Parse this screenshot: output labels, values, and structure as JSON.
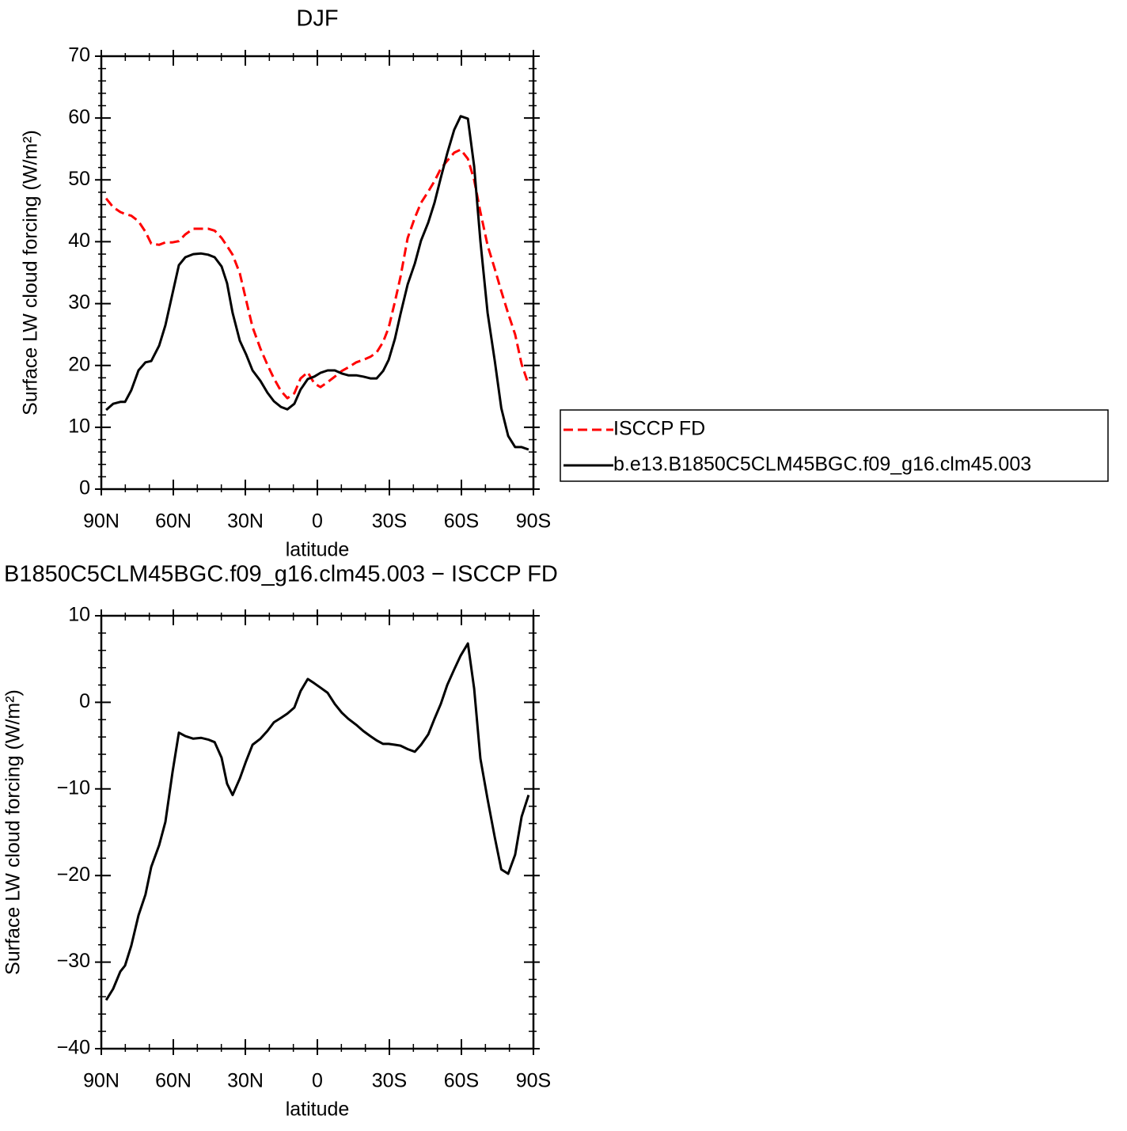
{
  "chart_data": [
    {
      "type": "line",
      "title": "DJF",
      "x_label": "latitude",
      "y_label": "Surface LW cloud forcing (W/m²)",
      "x": [
        88.0,
        85.1,
        82.1,
        80.1,
        77.5,
        74.5,
        71.6,
        69.2,
        65.9,
        63.3,
        60.3,
        57.7,
        55.0,
        51.7,
        48.4,
        45.5,
        42.8,
        39.9,
        37.6,
        35.3,
        32.3,
        29.7,
        27.0,
        23.7,
        20.8,
        18.1,
        15.2,
        12.5,
        9.6,
        7.0,
        4.0,
        1.3,
        -1.3,
        -4.3,
        -7.3,
        -10.2,
        -12.9,
        -16.2,
        -19.1,
        -22.1,
        -24.7,
        -27.4,
        -29.7,
        -32.3,
        -34.6,
        -37.6,
        -40.6,
        -43.2,
        -46.2,
        -48.8,
        -51.4,
        -54.1,
        -57.0,
        -59.7,
        -62.7,
        -65.3,
        -67.9,
        -70.9,
        -73.9,
        -76.6,
        -79.5,
        -82.4,
        -85.1,
        -88.0
      ],
      "series": [
        {
          "name": "ISCCP FD",
          "color": "#ff0000",
          "dash": "dashed",
          "values": [
            47.0,
            45.6,
            44.8,
            44.5,
            44.2,
            43.3,
            41.6,
            39.7,
            39.5,
            39.9,
            39.9,
            40.1,
            41.2,
            42.1,
            42.1,
            42.1,
            41.8,
            40.6,
            39.3,
            37.9,
            34.9,
            30.6,
            26.2,
            22.7,
            20.1,
            17.9,
            15.9,
            14.7,
            15.5,
            17.9,
            18.9,
            17.1,
            16.5,
            17.3,
            18.2,
            19.1,
            19.7,
            20.5,
            20.9,
            21.4,
            22.1,
            23.8,
            26.1,
            30.3,
            34.3,
            40.6,
            43.9,
            46.3,
            48.1,
            49.8,
            51.8,
            53.1,
            54.4,
            54.9,
            53.4,
            50.0,
            44.8,
            39.4,
            35.6,
            32.0,
            28.4,
            25.0,
            20.2,
            16.9
          ]
        },
        {
          "name": "b.e13.B1850C5CLM45BGC.f09_g16.clm45.003",
          "color": "#000000",
          "dash": "solid",
          "values": [
            12.8,
            13.8,
            14.1,
            14.1,
            16.0,
            19.2,
            20.5,
            20.7,
            23.2,
            26.5,
            31.7,
            36.2,
            37.5,
            38.0,
            38.1,
            37.9,
            37.5,
            36.0,
            33.3,
            28.5,
            24.0,
            21.8,
            19.2,
            17.5,
            15.6,
            14.2,
            13.3,
            12.9,
            13.8,
            16.1,
            17.8,
            18.2,
            18.8,
            19.2,
            19.2,
            18.7,
            18.4,
            18.4,
            18.2,
            17.9,
            17.9,
            19.1,
            20.9,
            24.3,
            28.3,
            33.1,
            36.5,
            40.2,
            43.1,
            46.3,
            50.3,
            54.3,
            58.1,
            60.3,
            59.9,
            52.2,
            40.1,
            28.5,
            20.7,
            13.1,
            8.6,
            6.8,
            6.8,
            6.4
          ]
        }
      ],
      "xlim": [
        90,
        -90
      ],
      "xticks": [
        {
          "value": 90,
          "label": "90N"
        },
        {
          "value": 60,
          "label": "60N"
        },
        {
          "value": 30,
          "label": "30N"
        },
        0,
        {
          "value": -30,
          "label": "30S"
        },
        {
          "value": -60,
          "label": "60S"
        },
        {
          "value": -90,
          "label": "90S"
        }
      ],
      "ylim": [
        0,
        70
      ],
      "yticks": [
        0,
        10,
        20,
        30,
        40,
        50,
        60,
        70
      ],
      "legend": "right"
    },
    {
      "type": "line",
      "title": "B1850C5CLM45BGC.f09_g16.clm45.003 − ISCCP FD",
      "x_label": "latitude",
      "y_label": "Surface LW cloud forcing (W/m²)",
      "x": [
        88.0,
        85.1,
        82.1,
        80.1,
        77.5,
        74.5,
        71.6,
        69.2,
        65.9,
        63.3,
        60.3,
        57.7,
        55.0,
        51.7,
        48.4,
        45.5,
        42.8,
        39.9,
        37.6,
        35.3,
        32.3,
        29.7,
        27.0,
        23.7,
        20.8,
        18.1,
        15.2,
        12.5,
        9.6,
        7.0,
        4.0,
        1.3,
        -1.3,
        -4.3,
        -7.3,
        -10.2,
        -12.9,
        -16.2,
        -19.1,
        -22.1,
        -24.7,
        -27.4,
        -29.7,
        -32.3,
        -34.6,
        -37.6,
        -40.6,
        -43.2,
        -46.2,
        -48.8,
        -51.4,
        -54.1,
        -57.0,
        -59.7,
        -62.7,
        -65.3,
        -67.9,
        -70.9,
        -73.9,
        -76.6,
        -79.5,
        -82.4,
        -85.1,
        -88.0
      ],
      "series": [
        {
          "color": "#000000",
          "dash": "solid",
          "values": [
            -34.4,
            -33.1,
            -31.1,
            -30.4,
            -28.1,
            -24.6,
            -22.2,
            -19.0,
            -16.5,
            -13.8,
            -8.0,
            -3.5,
            -3.9,
            -4.2,
            -4.1,
            -4.3,
            -4.6,
            -6.4,
            -9.4,
            -10.7,
            -8.8,
            -6.8,
            -4.9,
            -4.2,
            -3.3,
            -2.3,
            -1.8,
            -1.3,
            -0.6,
            1.3,
            2.7,
            2.2,
            1.7,
            1.1,
            -0.2,
            -1.2,
            -1.9,
            -2.6,
            -3.3,
            -3.9,
            -4.4,
            -4.8,
            -4.8,
            -4.9,
            -5.0,
            -5.4,
            -5.7,
            -4.9,
            -3.7,
            -1.9,
            -0.2,
            2.0,
            3.8,
            5.4,
            6.8,
            1.6,
            -6.5,
            -11.2,
            -15.6,
            -19.3,
            -19.8,
            -17.6,
            -13.2,
            -10.7
          ]
        }
      ],
      "xlim": [
        90,
        -90
      ],
      "xticks": [
        {
          "value": 90,
          "label": "90N"
        },
        {
          "value": 60,
          "label": "60N"
        },
        {
          "value": 30,
          "label": "30N"
        },
        0,
        {
          "value": -30,
          "label": "30S"
        },
        {
          "value": -60,
          "label": "60S"
        },
        {
          "value": -90,
          "label": "90S"
        }
      ],
      "ylim": [
        -40,
        10
      ],
      "yticks": [
        {
          "value": -40,
          "label": "−40"
        },
        {
          "value": -30,
          "label": "−30"
        },
        {
          "value": -20,
          "label": "−20"
        },
        {
          "value": -10,
          "label": "−10"
        },
        0,
        10
      ]
    }
  ]
}
